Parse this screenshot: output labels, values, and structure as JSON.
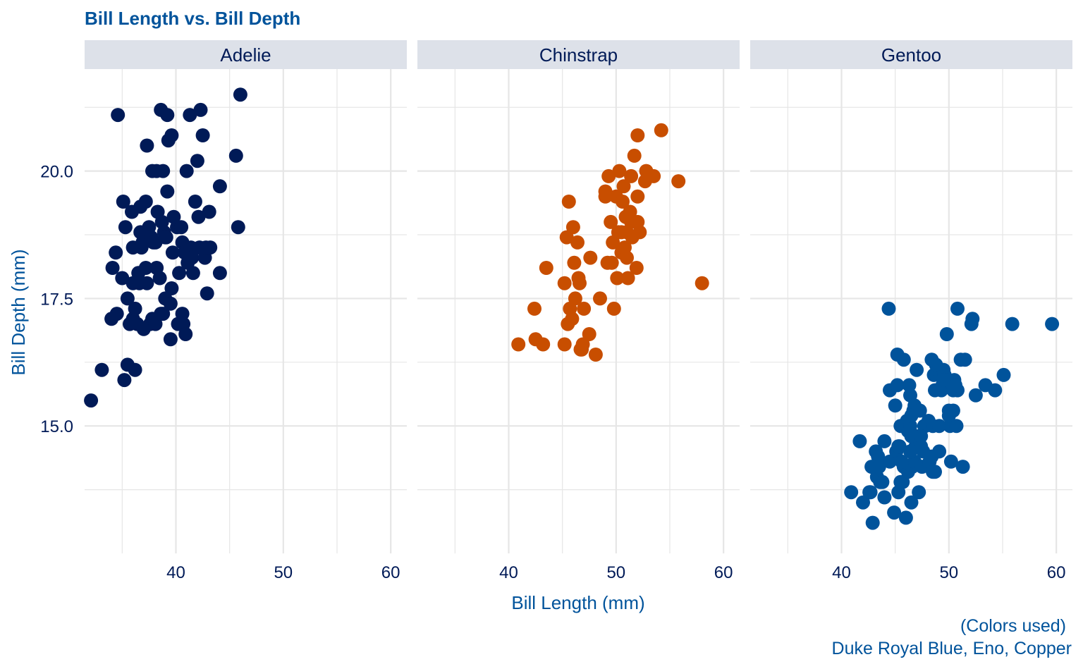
{
  "chart_data": {
    "type": "scatter",
    "title": "Bill Length vs. Bill Depth",
    "xlabel": "Bill Length (mm)",
    "ylabel": "Bill Depth (mm)",
    "xlim": [
      31.5,
      61.5
    ],
    "ylim": [
      12.5,
      22
    ],
    "x_ticks": [
      "40",
      "50",
      "60"
    ],
    "y_ticks": [
      "15.0",
      "17.5",
      "20.0"
    ],
    "x_tick_values": [
      40,
      50,
      60
    ],
    "y_tick_values": [
      15,
      17.5,
      20
    ],
    "grid": true,
    "facets": [
      {
        "name": "Adelie",
        "color": "#001A57",
        "points": [
          [
            32.1,
            15.5
          ],
          [
            33.1,
            16.1
          ],
          [
            34.0,
            17.1
          ],
          [
            34.1,
            18.1
          ],
          [
            34.4,
            18.4
          ],
          [
            34.5,
            17.2
          ],
          [
            34.6,
            21.1
          ],
          [
            35.0,
            17.9
          ],
          [
            35.1,
            19.4
          ],
          [
            35.2,
            15.9
          ],
          [
            35.3,
            18.9
          ],
          [
            35.5,
            16.2
          ],
          [
            35.5,
            17.5
          ],
          [
            35.7,
            17.0
          ],
          [
            35.9,
            19.2
          ],
          [
            36.0,
            18.5
          ],
          [
            36.0,
            17.1
          ],
          [
            36.0,
            17.8
          ],
          [
            36.2,
            16.1
          ],
          [
            36.2,
            17.3
          ],
          [
            36.4,
            17.0
          ],
          [
            36.5,
            18.0
          ],
          [
            36.6,
            17.8
          ],
          [
            36.7,
            18.8
          ],
          [
            36.7,
            19.3
          ],
          [
            36.8,
            18.5
          ],
          [
            36.9,
            18.6
          ],
          [
            37.0,
            16.9
          ],
          [
            37.2,
            19.4
          ],
          [
            37.2,
            18.1
          ],
          [
            37.3,
            20.5
          ],
          [
            37.3,
            17.8
          ],
          [
            37.5,
            18.9
          ],
          [
            37.6,
            17.0
          ],
          [
            37.7,
            18.7
          ],
          [
            37.8,
            20.0
          ],
          [
            37.8,
            17.1
          ],
          [
            37.9,
            18.6
          ],
          [
            38.1,
            18.6
          ],
          [
            38.1,
            17.0
          ],
          [
            38.2,
            18.1
          ],
          [
            38.2,
            20.0
          ],
          [
            38.3,
            19.2
          ],
          [
            38.5,
            17.9
          ],
          [
            38.6,
            21.2
          ],
          [
            38.6,
            17.2
          ],
          [
            38.7,
            19.0
          ],
          [
            38.8,
            17.2
          ],
          [
            38.8,
            20.0
          ],
          [
            38.9,
            18.8
          ],
          [
            39.0,
            17.5
          ],
          [
            39.0,
            18.7
          ],
          [
            39.1,
            18.7
          ],
          [
            39.2,
            19.6
          ],
          [
            39.2,
            21.1
          ],
          [
            39.3,
            20.6
          ],
          [
            39.5,
            17.4
          ],
          [
            39.5,
            16.7
          ],
          [
            39.6,
            17.7
          ],
          [
            39.6,
            20.7
          ],
          [
            39.7,
            18.4
          ],
          [
            39.8,
            19.1
          ],
          [
            40.1,
            18.9
          ],
          [
            40.2,
            17.0
          ],
          [
            40.3,
            18.0
          ],
          [
            40.5,
            18.9
          ],
          [
            40.6,
            18.6
          ],
          [
            40.6,
            17.2
          ],
          [
            40.7,
            17.0
          ],
          [
            40.8,
            18.4
          ],
          [
            40.9,
            16.8
          ],
          [
            41.0,
            20.0
          ],
          [
            41.1,
            18.2
          ],
          [
            41.3,
            21.1
          ],
          [
            41.4,
            18.5
          ],
          [
            41.5,
            18.3
          ],
          [
            41.6,
            18.0
          ],
          [
            41.8,
            19.4
          ],
          [
            42.0,
            20.2
          ],
          [
            42.1,
            19.1
          ],
          [
            42.2,
            18.5
          ],
          [
            42.3,
            21.2
          ],
          [
            42.5,
            20.7
          ],
          [
            42.7,
            18.3
          ],
          [
            42.8,
            18.5
          ],
          [
            42.9,
            17.6
          ],
          [
            43.1,
            19.2
          ],
          [
            43.2,
            18.5
          ],
          [
            44.1,
            18.0
          ],
          [
            44.1,
            19.7
          ],
          [
            45.6,
            20.3
          ],
          [
            45.8,
            18.9
          ],
          [
            46.0,
            21.5
          ]
        ]
      },
      {
        "name": "Chinstrap",
        "color": "#C84E00",
        "points": [
          [
            40.9,
            16.6
          ],
          [
            42.4,
            17.3
          ],
          [
            42.5,
            16.7
          ],
          [
            43.2,
            16.6
          ],
          [
            43.5,
            18.1
          ],
          [
            45.2,
            17.8
          ],
          [
            45.2,
            16.6
          ],
          [
            45.4,
            18.7
          ],
          [
            45.5,
            17.0
          ],
          [
            45.6,
            19.4
          ],
          [
            45.7,
            17.3
          ],
          [
            45.9,
            17.1
          ],
          [
            46.0,
            18.9
          ],
          [
            46.1,
            18.2
          ],
          [
            46.2,
            17.5
          ],
          [
            46.4,
            18.6
          ],
          [
            46.5,
            17.9
          ],
          [
            46.6,
            17.8
          ],
          [
            46.7,
            16.5
          ],
          [
            46.8,
            16.5
          ],
          [
            46.9,
            16.6
          ],
          [
            47.0,
            17.3
          ],
          [
            47.5,
            16.8
          ],
          [
            47.6,
            18.3
          ],
          [
            48.1,
            16.4
          ],
          [
            48.5,
            17.5
          ],
          [
            49.0,
            19.5
          ],
          [
            49.0,
            19.6
          ],
          [
            49.2,
            18.2
          ],
          [
            49.3,
            19.9
          ],
          [
            49.5,
            19.0
          ],
          [
            49.6,
            18.2
          ],
          [
            49.7,
            18.6
          ],
          [
            49.8,
            17.3
          ],
          [
            50.0,
            19.5
          ],
          [
            50.1,
            17.9
          ],
          [
            50.2,
            18.8
          ],
          [
            50.3,
            20.0
          ],
          [
            50.5,
            18.4
          ],
          [
            50.6,
            19.4
          ],
          [
            50.7,
            19.7
          ],
          [
            50.8,
            18.5
          ],
          [
            50.9,
            19.1
          ],
          [
            51.0,
            18.8
          ],
          [
            51.1,
            17.9
          ],
          [
            51.3,
            19.2
          ],
          [
            51.4,
            19.0
          ],
          [
            51.5,
            18.7
          ],
          [
            51.7,
            20.3
          ],
          [
            51.9,
            18.1
          ],
          [
            52.0,
            19.0
          ],
          [
            52.0,
            20.7
          ],
          [
            52.2,
            18.8
          ],
          [
            52.7,
            19.8
          ],
          [
            52.8,
            20.0
          ],
          [
            53.5,
            19.9
          ],
          [
            54.2,
            20.8
          ],
          [
            55.8,
            19.8
          ],
          [
            58.0,
            17.8
          ],
          [
            51.4,
            19.9
          ],
          [
            51.0,
            18.3
          ],
          [
            52.0,
            19.5
          ],
          [
            50.5,
            18.8
          ]
        ]
      },
      {
        "name": "Gentoo",
        "color": "#00539B",
        "points": [
          [
            40.9,
            13.7
          ],
          [
            41.7,
            14.7
          ],
          [
            42.0,
            13.5
          ],
          [
            42.6,
            13.7
          ],
          [
            42.7,
            13.7
          ],
          [
            42.8,
            14.2
          ],
          [
            42.9,
            13.1
          ],
          [
            43.2,
            14.5
          ],
          [
            43.3,
            14.0
          ],
          [
            43.4,
            14.4
          ],
          [
            43.5,
            14.2
          ],
          [
            43.6,
            13.9
          ],
          [
            43.8,
            13.9
          ],
          [
            44.0,
            13.6
          ],
          [
            44.4,
            17.3
          ],
          [
            44.5,
            14.3
          ],
          [
            44.5,
            15.7
          ],
          [
            44.9,
            13.3
          ],
          [
            45.0,
            15.4
          ],
          [
            45.1,
            14.5
          ],
          [
            45.2,
            16.4
          ],
          [
            45.3,
            13.7
          ],
          [
            45.4,
            14.6
          ],
          [
            45.5,
            13.9
          ],
          [
            45.5,
            15.0
          ],
          [
            45.7,
            13.9
          ],
          [
            45.8,
            14.2
          ],
          [
            46.1,
            15.1
          ],
          [
            46.2,
            14.1
          ],
          [
            46.2,
            14.9
          ],
          [
            46.4,
            15.6
          ],
          [
            46.4,
            15.0
          ],
          [
            46.5,
            14.8
          ],
          [
            46.5,
            13.5
          ],
          [
            46.6,
            14.2
          ],
          [
            46.7,
            15.3
          ],
          [
            46.8,
            15.4
          ],
          [
            46.8,
            14.3
          ],
          [
            46.9,
            14.6
          ],
          [
            47.2,
            13.7
          ],
          [
            47.3,
            15.3
          ],
          [
            47.4,
            14.6
          ],
          [
            47.5,
            14.2
          ],
          [
            47.6,
            14.5
          ],
          [
            47.7,
            15.0
          ],
          [
            47.8,
            15.0
          ],
          [
            48.1,
            15.1
          ],
          [
            48.2,
            14.3
          ],
          [
            48.4,
            14.4
          ],
          [
            48.5,
            15.0
          ],
          [
            48.6,
            16.0
          ],
          [
            48.7,
            14.1
          ],
          [
            48.7,
            15.7
          ],
          [
            49.0,
            16.1
          ],
          [
            49.1,
            14.5
          ],
          [
            49.3,
            15.7
          ],
          [
            49.4,
            15.8
          ],
          [
            49.5,
            16.1
          ],
          [
            49.6,
            16.0
          ],
          [
            49.8,
            15.9
          ],
          [
            50.0,
            15.2
          ],
          [
            50.1,
            15.0
          ],
          [
            50.2,
            14.3
          ],
          [
            50.4,
            15.7
          ],
          [
            50.5,
            15.9
          ],
          [
            50.7,
            15.0
          ],
          [
            50.8,
            15.7
          ],
          [
            51.1,
            16.3
          ],
          [
            51.3,
            14.2
          ],
          [
            51.5,
            16.3
          ],
          [
            52.1,
            17.0
          ],
          [
            52.2,
            17.1
          ],
          [
            52.5,
            15.6
          ],
          [
            53.4,
            15.8
          ],
          [
            54.3,
            15.7
          ],
          [
            55.1,
            16.0
          ],
          [
            55.9,
            17.0
          ],
          [
            59.6,
            17.0
          ],
          [
            45.8,
            16.3
          ],
          [
            46.5,
            15.2
          ],
          [
            47.0,
            16.1
          ],
          [
            48.5,
            14.1
          ],
          [
            49.8,
            16.8
          ],
          [
            50.4,
            15.3
          ],
          [
            50.8,
            17.3
          ],
          [
            48.4,
            16.3
          ],
          [
            46.0,
            13.2
          ],
          [
            45.6,
            14.3
          ],
          [
            47.0,
            14.8
          ],
          [
            49.1,
            15.0
          ],
          [
            50.0,
            15.3
          ],
          [
            44.0,
            14.7
          ],
          [
            45.2,
            15.8
          ],
          [
            46.3,
            15.8
          ],
          [
            48.8,
            16.2
          ],
          [
            50.6,
            15.8
          ],
          [
            49.5,
            15.9
          ],
          [
            47.4,
            14.8
          ],
          [
            46.4,
            14.5
          ],
          [
            45.3,
            14.6
          ]
        ]
      }
    ],
    "caption_line1": "(Colors used)",
    "caption_line2": "Duke Royal Blue, Eno, Copper",
    "colors": {
      "title": "#00539B",
      "axis_text": "#001A57",
      "axis_title": "#00539B",
      "strip_bg": "#DDE1E9",
      "grid": "#E6E6E6"
    }
  }
}
